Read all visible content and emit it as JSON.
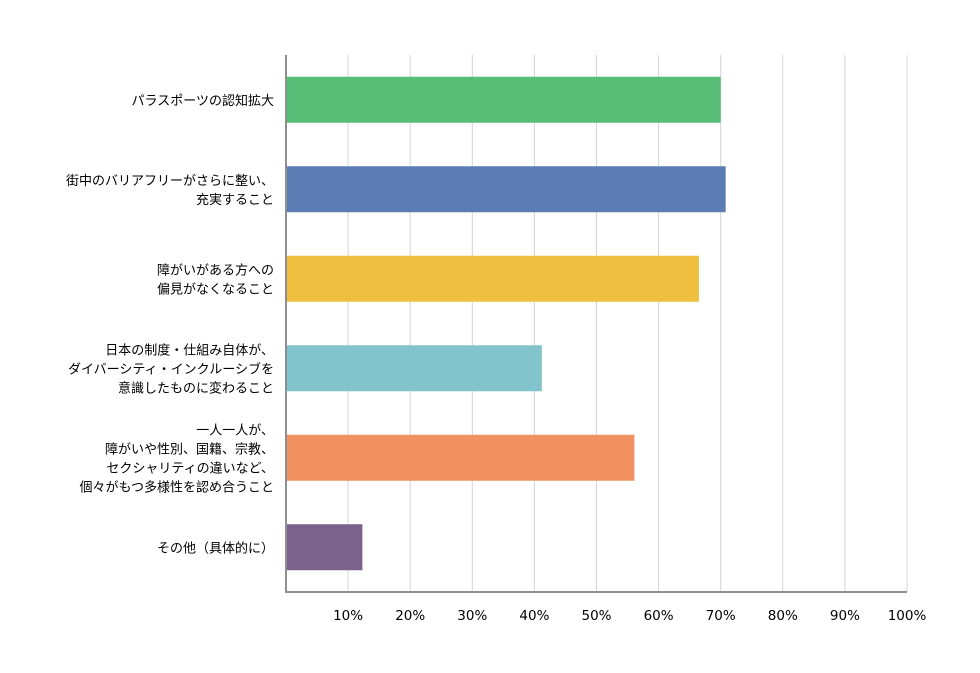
{
  "chart_data": {
    "type": "bar",
    "orientation": "horizontal",
    "categories": [
      [
        "パラスポーツの認知拡大"
      ],
      [
        "街中のバリアフリーがさらに整い、",
        "充実すること"
      ],
      [
        "障がいがある方への",
        "偏見がなくなること"
      ],
      [
        "日本の制度・仕組み自体が、",
        "ダイバーシティ・インクルーシブを",
        "意識したものに変わること"
      ],
      [
        "一人一人が、",
        "障がいや性別、国籍、宗教、",
        "セクシャリティの違いなど、",
        "個々がもつ多様性を認め合うこと"
      ],
      [
        "その他（具体的に）"
      ]
    ],
    "values": [
      70,
      70.8,
      66.5,
      41.2,
      56.1,
      12.3
    ],
    "colors": [
      "#58bd77",
      "#5b7db3",
      "#efc03f",
      "#82c4cb",
      "#f0915f",
      "#7a628c"
    ],
    "xticks": [
      "10%",
      "20%",
      "30%",
      "40%",
      "50%",
      "60%",
      "70%",
      "80%",
      "90%",
      "100%"
    ],
    "xlim": [
      0,
      100
    ],
    "grid": true,
    "legend": "none"
  }
}
